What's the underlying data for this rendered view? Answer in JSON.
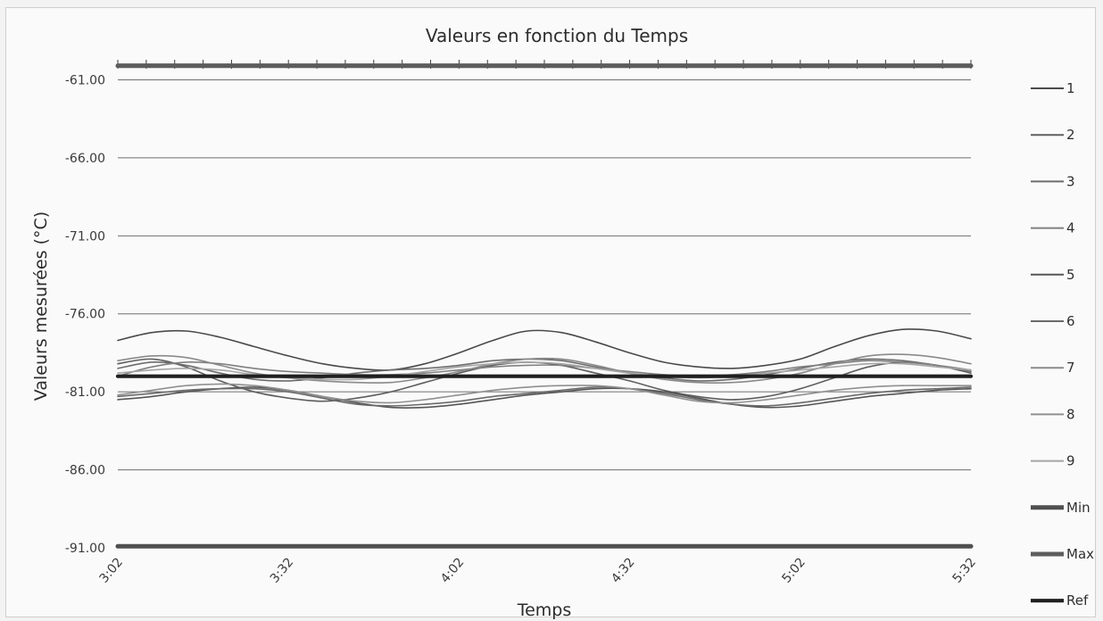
{
  "chart_data": {
    "type": "line",
    "title": "Valeurs en fonction du Temps",
    "xlabel": "Temps",
    "ylabel": "Valeurs mesurées (°C)",
    "x_ticks": [
      "3:02",
      "3:32",
      "4:02",
      "4:32",
      "5:02",
      "5:32"
    ],
    "y_ticks": [
      "-61.00",
      "-66.00",
      "-71.00",
      "-76.00",
      "-81.00",
      "-86.00",
      "-91.00"
    ],
    "xlim": [
      "3:02",
      "5:32"
    ],
    "ylim": [
      -91,
      -60
    ],
    "grid": true,
    "legend_position": "right",
    "x": [
      "3:02",
      "3:08",
      "3:14",
      "3:20",
      "3:26",
      "3:32",
      "3:38",
      "3:44",
      "3:50",
      "3:56",
      "4:02",
      "4:08",
      "4:14",
      "4:20",
      "4:26",
      "4:32",
      "4:38",
      "4:44",
      "4:50",
      "4:56",
      "5:02",
      "5:08",
      "5:14",
      "5:20",
      "5:26",
      "5:32"
    ],
    "series": [
      {
        "name": "1",
        "color": "#4a4a4a",
        "values": [
          -77.7,
          -77.2,
          -77.1,
          -77.5,
          -78.1,
          -78.7,
          -79.2,
          -79.5,
          -79.6,
          -79.2,
          -78.5,
          -77.7,
          -77.1,
          -77.2,
          -77.8,
          -78.5,
          -79.1,
          -79.4,
          -79.5,
          -79.3,
          -78.9,
          -78.1,
          -77.4,
          -77.0,
          -77.1,
          -77.6
        ]
      },
      {
        "name": "2",
        "color": "#5f5f5f",
        "values": [
          -79.2,
          -78.9,
          -79.4,
          -80.3,
          -81.0,
          -81.4,
          -81.6,
          -81.4,
          -81.0,
          -80.4,
          -79.8,
          -79.3,
          -79.1,
          -79.3,
          -79.8,
          -80.3,
          -80.9,
          -81.3,
          -81.5,
          -81.3,
          -80.8,
          -80.1,
          -79.4,
          -79.1,
          -79.3,
          -79.8
        ]
      },
      {
        "name": "3",
        "color": "#6c6c6c",
        "values": [
          -79.5,
          -79.1,
          -79.3,
          -79.8,
          -80.2,
          -80.3,
          -80.1,
          -79.8,
          -79.6,
          -79.5,
          -79.3,
          -79.0,
          -78.9,
          -79.0,
          -79.4,
          -79.8,
          -80.1,
          -80.3,
          -80.2,
          -79.9,
          -79.5,
          -79.1,
          -78.9,
          -79.0,
          -79.3,
          -79.7
        ]
      },
      {
        "name": "4",
        "color": "#808080",
        "values": [
          -80.0,
          -79.4,
          -79.1,
          -79.2,
          -79.5,
          -79.7,
          -79.8,
          -79.9,
          -79.9,
          -79.8,
          -79.6,
          -79.4,
          -79.3,
          -79.3,
          -79.5,
          -79.7,
          -79.9,
          -80.0,
          -79.9,
          -79.7,
          -79.4,
          -79.2,
          -79.0,
          -79.1,
          -79.3,
          -79.6
        ]
      },
      {
        "name": "5",
        "color": "#555555",
        "values": [
          -81.5,
          -81.3,
          -81.0,
          -80.8,
          -80.7,
          -80.9,
          -81.3,
          -81.7,
          -82.0,
          -82.0,
          -81.8,
          -81.5,
          -81.2,
          -81.0,
          -80.8,
          -80.8,
          -81.0,
          -81.4,
          -81.8,
          -82.0,
          -81.9,
          -81.6,
          -81.3,
          -81.1,
          -80.9,
          -80.8
        ]
      },
      {
        "name": "6",
        "color": "#6a6a6a",
        "values": [
          -81.3,
          -81.1,
          -80.9,
          -80.8,
          -80.8,
          -81.0,
          -81.4,
          -81.8,
          -81.9,
          -81.8,
          -81.6,
          -81.3,
          -81.1,
          -80.9,
          -80.7,
          -80.8,
          -81.1,
          -81.5,
          -81.8,
          -81.9,
          -81.7,
          -81.4,
          -81.1,
          -80.9,
          -80.8,
          -80.7
        ]
      },
      {
        "name": "7",
        "color": "#8a8a8a",
        "values": [
          -79.0,
          -78.7,
          -78.8,
          -79.3,
          -79.8,
          -80.1,
          -80.3,
          -80.4,
          -80.4,
          -80.1,
          -79.7,
          -79.2,
          -78.9,
          -78.9,
          -79.3,
          -79.8,
          -80.2,
          -80.4,
          -80.4,
          -80.2,
          -79.8,
          -79.2,
          -78.7,
          -78.6,
          -78.8,
          -79.2
        ]
      },
      {
        "name": "8",
        "color": "#909090",
        "values": [
          -81.2,
          -80.9,
          -80.6,
          -80.5,
          -80.6,
          -80.9,
          -81.3,
          -81.6,
          -81.7,
          -81.5,
          -81.2,
          -80.9,
          -80.7,
          -80.6,
          -80.6,
          -80.8,
          -81.2,
          -81.6,
          -81.7,
          -81.5,
          -81.2,
          -80.9,
          -80.7,
          -80.6,
          -80.6,
          -80.6
        ]
      },
      {
        "name": "9",
        "color": "#a5a5a5",
        "values": [
          -79.8,
          -79.6,
          -79.5,
          -79.6,
          -79.9,
          -80.1,
          -80.2,
          -80.2,
          -80.0,
          -79.7,
          -79.4,
          -79.2,
          -79.1,
          -79.2,
          -79.5,
          -79.8,
          -80.0,
          -80.1,
          -80.0,
          -79.8,
          -79.6,
          -79.4,
          -79.2,
          -79.2,
          -79.4,
          -79.6
        ]
      },
      {
        "name": "Min",
        "color": "#4f4f4f",
        "values": [
          -90.9,
          -90.9,
          -90.9,
          -90.9,
          -90.9,
          -90.9,
          -90.9,
          -90.9,
          -90.9,
          -90.9,
          -90.9,
          -90.9,
          -90.9,
          -90.9,
          -90.9,
          -90.9,
          -90.9,
          -90.9,
          -90.9,
          -90.9,
          -90.9,
          -90.9,
          -90.9,
          -90.9,
          -90.9,
          -90.9
        ]
      },
      {
        "name": "Max",
        "color": "#5d5d5d",
        "values": [
          -60.1,
          -60.1,
          -60.1,
          -60.1,
          -60.1,
          -60.1,
          -60.1,
          -60.1,
          -60.1,
          -60.1,
          -60.1,
          -60.1,
          -60.1,
          -60.1,
          -60.1,
          -60.1,
          -60.1,
          -60.1,
          -60.1,
          -60.1,
          -60.1,
          -60.1,
          -60.1,
          -60.1,
          -60.1,
          -60.1
        ]
      },
      {
        "name": "Ref",
        "color": "#1f1f1f",
        "values": [
          -80.0,
          -80.0,
          -80.0,
          -80.0,
          -80.0,
          -80.0,
          -80.0,
          -80.0,
          -80.0,
          -80.0,
          -80.0,
          -80.0,
          -80.0,
          -80.0,
          -80.0,
          -80.0,
          -80.0,
          -80.0,
          -80.0,
          -80.0,
          -80.0,
          -80.0,
          -80.0,
          -80.0,
          -80.0,
          -80.0
        ]
      }
    ]
  }
}
